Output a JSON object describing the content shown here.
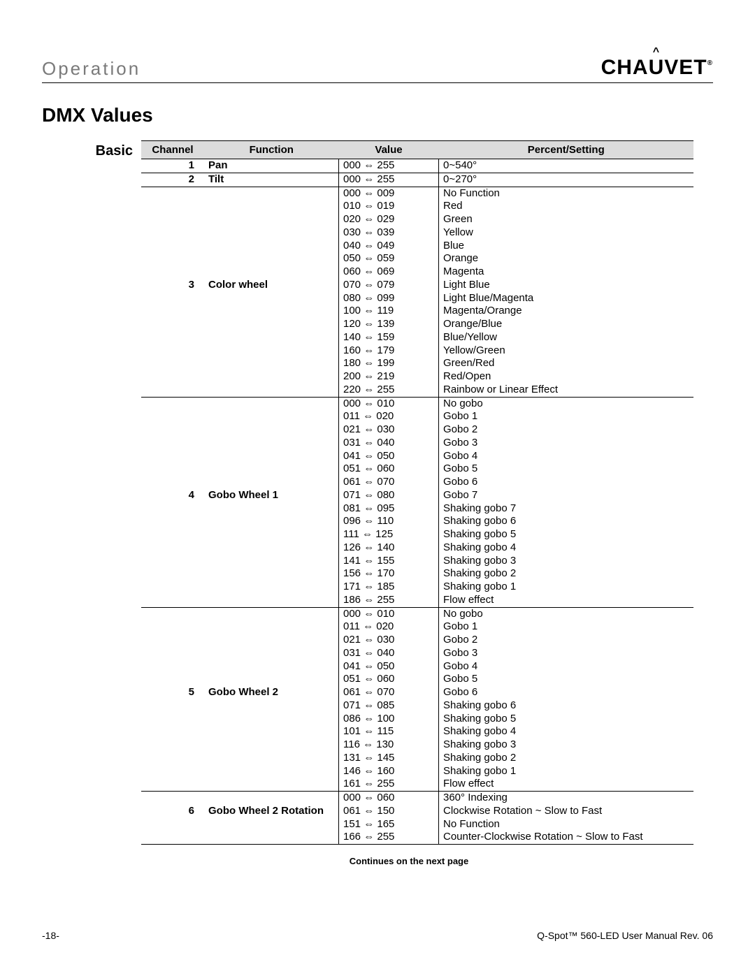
{
  "header": {
    "section": "Operation",
    "brand_left": "CHA",
    "brand_u": "U",
    "brand_right": "VET",
    "brand_reg": "®"
  },
  "title": "DMX Values",
  "sidebar": "Basic",
  "columns": {
    "channel": "Channel",
    "function": "Function",
    "value": "Value",
    "percent": "Percent/Setting"
  },
  "arrow": "⇔",
  "groups": [
    {
      "channel": "1",
      "function": "Pan",
      "rows": [
        {
          "v1": "000",
          "v2": "255",
          "ps": "0~540°"
        }
      ]
    },
    {
      "channel": "2",
      "function": "Tilt",
      "rows": [
        {
          "v1": "000",
          "v2": "255",
          "ps": "0~270°"
        }
      ]
    },
    {
      "channel": "3",
      "function": "Color wheel",
      "rows": [
        {
          "v1": "000",
          "v2": "009",
          "ps": "No Function"
        },
        {
          "v1": "010",
          "v2": "019",
          "ps": "Red"
        },
        {
          "v1": "020",
          "v2": "029",
          "ps": "Green"
        },
        {
          "v1": "030",
          "v2": "039",
          "ps": "Yellow"
        },
        {
          "v1": "040",
          "v2": "049",
          "ps": "Blue"
        },
        {
          "v1": "050",
          "v2": "059",
          "ps": "Orange"
        },
        {
          "v1": "060",
          "v2": "069",
          "ps": "Magenta"
        },
        {
          "v1": "070",
          "v2": "079",
          "ps": "Light Blue"
        },
        {
          "v1": "080",
          "v2": "099",
          "ps": "Light Blue/Magenta"
        },
        {
          "v1": "100",
          "v2": "119",
          "ps": "Magenta/Orange"
        },
        {
          "v1": "120",
          "v2": "139",
          "ps": "Orange/Blue"
        },
        {
          "v1": "140",
          "v2": "159",
          "ps": "Blue/Yellow"
        },
        {
          "v1": "160",
          "v2": "179",
          "ps": "Yellow/Green"
        },
        {
          "v1": "180",
          "v2": "199",
          "ps": "Green/Red"
        },
        {
          "v1": "200",
          "v2": "219",
          "ps": "Red/Open"
        },
        {
          "v1": "220",
          "v2": "255",
          "ps": "Rainbow or Linear Effect"
        }
      ]
    },
    {
      "channel": "4",
      "function": "Gobo Wheel 1",
      "rows": [
        {
          "v1": "000",
          "v2": "010",
          "ps": "No gobo"
        },
        {
          "v1": "011",
          "v2": "020",
          "ps": "Gobo 1"
        },
        {
          "v1": "021",
          "v2": "030",
          "ps": "Gobo 2"
        },
        {
          "v1": "031",
          "v2": "040",
          "ps": "Gobo 3"
        },
        {
          "v1": "041",
          "v2": "050",
          "ps": "Gobo 4"
        },
        {
          "v1": "051",
          "v2": "060",
          "ps": "Gobo 5"
        },
        {
          "v1": "061",
          "v2": "070",
          "ps": "Gobo 6"
        },
        {
          "v1": "071",
          "v2": "080",
          "ps": "Gobo 7"
        },
        {
          "v1": "081",
          "v2": "095",
          "ps": "Shaking gobo 7"
        },
        {
          "v1": "096",
          "v2": "110",
          "ps": "Shaking gobo 6"
        },
        {
          "v1": "111",
          "v2": "125",
          "ps": "Shaking gobo 5"
        },
        {
          "v1": "126",
          "v2": "140",
          "ps": "Shaking gobo 4"
        },
        {
          "v1": "141",
          "v2": "155",
          "ps": "Shaking gobo 3"
        },
        {
          "v1": "156",
          "v2": "170",
          "ps": "Shaking gobo 2"
        },
        {
          "v1": "171",
          "v2": "185",
          "ps": "Shaking gobo 1"
        },
        {
          "v1": "186",
          "v2": "255",
          "ps": "Flow effect"
        }
      ]
    },
    {
      "channel": "5",
      "function": "Gobo Wheel 2",
      "rows": [
        {
          "v1": "000",
          "v2": "010",
          "ps": "No gobo"
        },
        {
          "v1": "011",
          "v2": "020",
          "ps": "Gobo 1"
        },
        {
          "v1": "021",
          "v2": "030",
          "ps": "Gobo 2"
        },
        {
          "v1": "031",
          "v2": "040",
          "ps": "Gobo 3"
        },
        {
          "v1": "041",
          "v2": "050",
          "ps": "Gobo 4"
        },
        {
          "v1": "051",
          "v2": "060",
          "ps": "Gobo 5"
        },
        {
          "v1": "061",
          "v2": "070",
          "ps": "Gobo 6"
        },
        {
          "v1": "071",
          "v2": "085",
          "ps": "Shaking gobo 6"
        },
        {
          "v1": "086",
          "v2": "100",
          "ps": "Shaking gobo 5"
        },
        {
          "v1": "101",
          "v2": "115",
          "ps": "Shaking gobo 4"
        },
        {
          "v1": "116",
          "v2": "130",
          "ps": "Shaking gobo 3"
        },
        {
          "v1": "131",
          "v2": "145",
          "ps": "Shaking gobo 2"
        },
        {
          "v1": "146",
          "v2": "160",
          "ps": "Shaking gobo 1"
        },
        {
          "v1": "161",
          "v2": "255",
          "ps": "Flow effect"
        }
      ]
    },
    {
      "channel": "6",
      "function": "Gobo Wheel 2 Rotation",
      "rows": [
        {
          "v1": "000",
          "v2": "060",
          "ps": "360° Indexing"
        },
        {
          "v1": "061",
          "v2": "150",
          "ps": "Clockwise Rotation ~ Slow to Fast"
        },
        {
          "v1": "151",
          "v2": "165",
          "ps": "No Function"
        },
        {
          "v1": "166",
          "v2": "255",
          "ps": "Counter-Clockwise Rotation ~ Slow to Fast"
        }
      ]
    }
  ],
  "continues": "Continues on the next page",
  "footer": {
    "page": "-18-",
    "manual": "Q-Spot™ 560-LED User Manual Rev. 06"
  }
}
